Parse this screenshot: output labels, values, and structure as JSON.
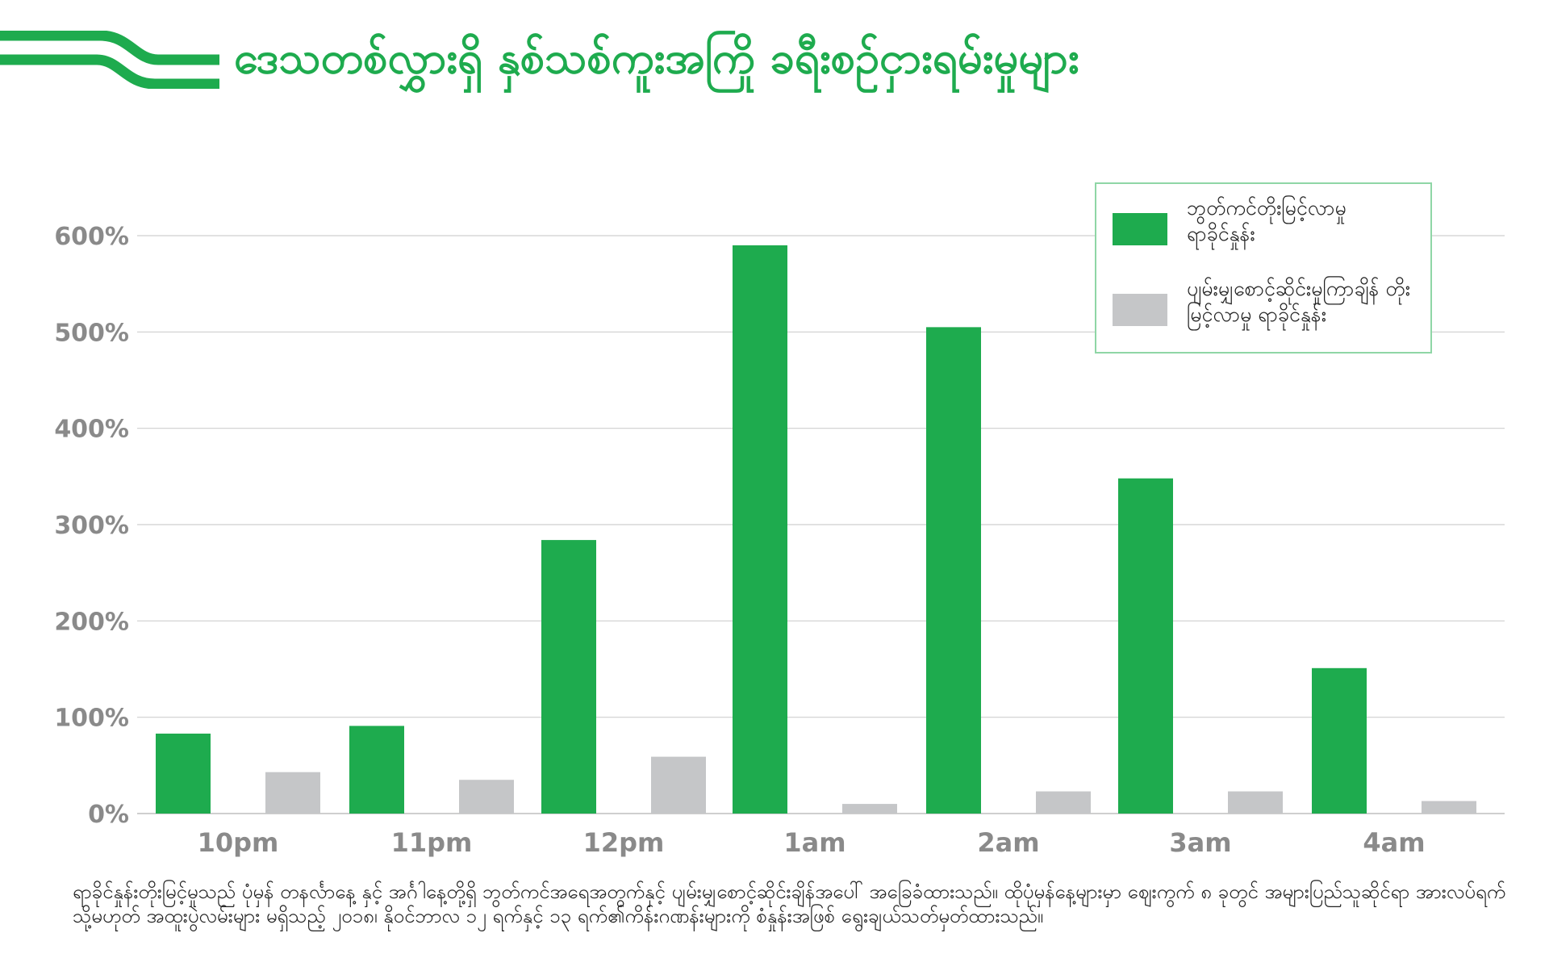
{
  "title": "ဒေသတစ်လွှားရှိ နှစ်သစ်ကူးအကြို ခရီးစဉ်ငှားရမ်းမှုများ",
  "colors": {
    "accent": "#1eab4e",
    "secondary": "#c5c6c8",
    "grid": "#cfcfcf",
    "axis_text": "#8a8a8a"
  },
  "chart_data": {
    "type": "bar",
    "categories": [
      "10pm",
      "11pm",
      "12pm",
      "1am",
      "2am",
      "3am",
      "4am"
    ],
    "series": [
      {
        "name": "ဘွတ်ကင်တိုးမြင့်လာမှု ရာခိုင်နှုန်း",
        "color": "#1eab4e",
        "values": [
          83,
          91,
          284,
          590,
          505,
          348,
          151
        ]
      },
      {
        "name": "ပျမ်းမျှစောင့်ဆိုင်းမှုကြာချိန် တိုးမြင့်လာမှု ရာခိုင်နှုန်း",
        "color": "#c5c6c8",
        "values": [
          43,
          35,
          59,
          10,
          23,
          23,
          13
        ]
      }
    ],
    "y_ticks": [
      "0%",
      "100%",
      "200%",
      "300%",
      "400%",
      "500%",
      "600%"
    ],
    "ylim": [
      0,
      600
    ],
    "grid": true,
    "legend_position": "top-right"
  },
  "footnote": "ရာခိုင်နှုန်းတိုးမြင့်မှုသည် ပုံမှန် တနင်္လာနေ့ နှင့် အင်္ဂါနေ့တို့ရှိ ဘွတ်ကင်အရေအတွက်နှင့် ပျမ်းမျှစောင့်ဆိုင်းချိန်အပေါ် အခြေခံထားသည်။ ထိုပုံမှန်နေ့များမှာ ဈေးကွက် ၈ ခုတွင် အများပြည်သူဆိုင်ရာ အားလပ်ရက် သို့မဟုတ် အထူးပွဲလမ်းများ မရှိသည့် ၂၀၁၈၊ နိုဝင်ဘာလ ၁၂ ရက်နှင့် ၁၃ ရက်၏ကိန်းဂဏန်းများကို စံနှုန်းအဖြစ် ရွေးချယ်သတ်မှတ်ထားသည်။"
}
